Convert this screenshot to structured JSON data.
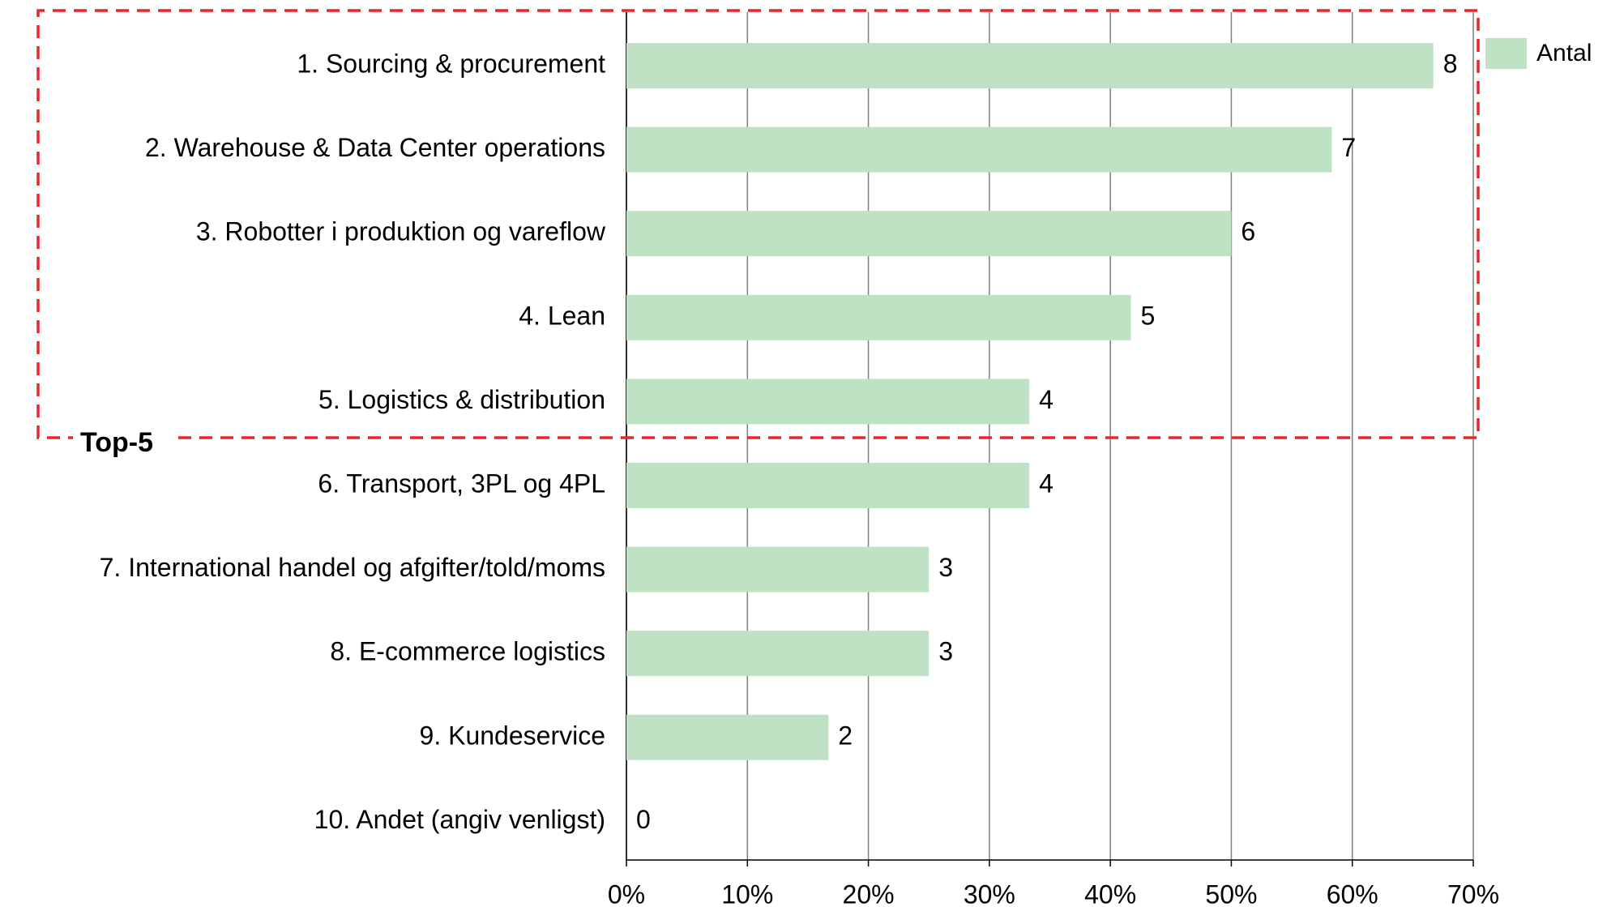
{
  "chart_data": {
    "type": "barh",
    "categories": [
      "1. Sourcing & procurement",
      "2. Warehouse & Data Center operations",
      "3. Robotter i produktion og vareflow",
      "4. Lean",
      "5. Logistics & distribution",
      "6. Transport, 3PL og 4PL",
      "7. International handel og afgifter/told/moms",
      "8. E-commerce logistics",
      "9. Kundeservice",
      "10. Andet (angiv venligst)"
    ],
    "series": [
      {
        "name": "Antal",
        "color": "#c0e2c4",
        "values": [
          66.7,
          58.3,
          50,
          41.7,
          33.3,
          33.3,
          25,
          25,
          16.7,
          0
        ],
        "value_labels": [
          "8",
          "7",
          "6",
          "5",
          "4",
          "4",
          "3",
          "3",
          "2",
          "0"
        ]
      }
    ],
    "xlim": [
      0,
      70
    ],
    "xticks": [
      {
        "value": 0,
        "label": "0%"
      },
      {
        "value": 10,
        "label": "10%"
      },
      {
        "value": 20,
        "label": "20%"
      },
      {
        "value": 30,
        "label": "30%"
      },
      {
        "value": 40,
        "label": "40%"
      },
      {
        "value": 50,
        "label": "50%"
      },
      {
        "value": 60,
        "label": "60%"
      },
      {
        "value": 70,
        "label": "70%"
      }
    ],
    "grid": true,
    "legend": "upper right",
    "annotations": [
      {
        "text": "Top-5",
        "color": "#e8262b"
      }
    ]
  }
}
